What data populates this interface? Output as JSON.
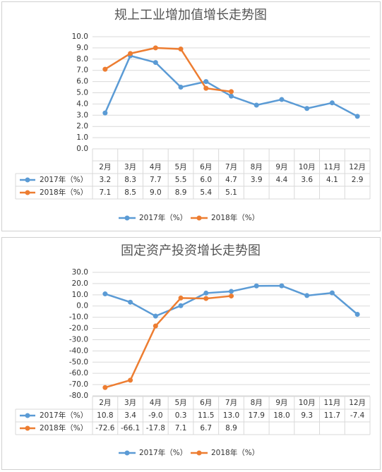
{
  "chart_data": [
    {
      "type": "line",
      "title": "规上工业增加值增长走势图",
      "categories": [
        "2月",
        "3月",
        "4月",
        "5月",
        "6月",
        "7月",
        "8月",
        "9月",
        "10月",
        "11月",
        "12月"
      ],
      "series": [
        {
          "name": "2017年（%）",
          "color": "#5b9bd5",
          "values": [
            3.2,
            8.3,
            7.7,
            5.5,
            6.0,
            4.7,
            3.9,
            4.4,
            3.6,
            4.1,
            2.9
          ],
          "value_labels": [
            "3.2",
            "8.3",
            "7.7",
            "5.5",
            "6.0",
            "4.7",
            "3.9",
            "4.4",
            "3.6",
            "4.1",
            "2.9"
          ]
        },
        {
          "name": "2018年（%）",
          "color": "#ed7d31",
          "values": [
            7.1,
            8.5,
            9.0,
            8.9,
            5.4,
            5.1,
            null,
            null,
            null,
            null,
            null
          ],
          "value_labels": [
            "7.1",
            "8.5",
            "9.0",
            "8.9",
            "5.4",
            "5.1",
            null,
            null,
            null,
            null,
            null
          ]
        }
      ],
      "ylim": [
        0,
        10
      ],
      "yticks": [
        {
          "value": 0,
          "label": "0.0"
        },
        {
          "value": 1,
          "label": "1.0"
        },
        {
          "value": 2,
          "label": "2.0"
        },
        {
          "value": 3,
          "label": "3.0"
        },
        {
          "value": 4,
          "label": "4.0"
        },
        {
          "value": 5,
          "label": "5.0"
        },
        {
          "value": 6,
          "label": "6.0"
        },
        {
          "value": 7,
          "label": "7.0"
        },
        {
          "value": 8,
          "label": "8.0"
        },
        {
          "value": 9,
          "label": "9.0"
        },
        {
          "value": 10,
          "label": "10.0"
        }
      ],
      "grid": true,
      "legend": "bottom"
    },
    {
      "type": "line",
      "title": "固定资产投资增长走势图",
      "categories": [
        "2月",
        "3月",
        "4月",
        "5月",
        "6月",
        "7月",
        "8月",
        "9月",
        "10月",
        "11月",
        "12月"
      ],
      "series": [
        {
          "name": "2017年（%）",
          "color": "#5b9bd5",
          "values": [
            10.8,
            3.4,
            -9.0,
            0.3,
            11.5,
            13.0,
            17.9,
            18.0,
            9.3,
            11.7,
            -7.4
          ],
          "value_labels": [
            "10.8",
            "3.4",
            "-9.0",
            "0.3",
            "11.5",
            "13.0",
            "17.9",
            "18.0",
            "9.3",
            "11.7",
            "-7.4"
          ]
        },
        {
          "name": "2018年（%）",
          "color": "#ed7d31",
          "values": [
            -72.6,
            -66.1,
            -17.8,
            7.1,
            6.7,
            8.9,
            null,
            null,
            null,
            null,
            null
          ],
          "value_labels": [
            "-72.6",
            "-66.1",
            "-17.8",
            "7.1",
            "6.7",
            "8.9",
            null,
            null,
            null,
            null,
            null
          ]
        }
      ],
      "ylim": [
        -80,
        30
      ],
      "yticks": [
        {
          "value": -80,
          "label": "-80.0"
        },
        {
          "value": -70,
          "label": "-70.0"
        },
        {
          "value": -60,
          "label": "-60.0"
        },
        {
          "value": -50,
          "label": "-50.0"
        },
        {
          "value": -40,
          "label": "-40.0"
        },
        {
          "value": -30,
          "label": "-30.0"
        },
        {
          "value": -20,
          "label": "-20.0"
        },
        {
          "value": -10,
          "label": "-10.0"
        },
        {
          "value": 0,
          "label": "0.0"
        },
        {
          "value": 10,
          "label": "10.0"
        },
        {
          "value": 20,
          "label": "20.0"
        },
        {
          "value": 30,
          "label": "30.0"
        }
      ],
      "grid": true,
      "legend": "bottom"
    }
  ]
}
